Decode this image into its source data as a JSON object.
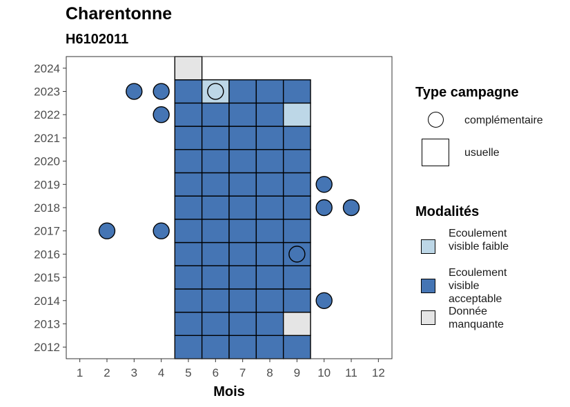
{
  "title": "Charentonne",
  "subtitle": "H6102011",
  "legend": {
    "shape_title": "Type campagne",
    "shapes": [
      {
        "label": "complémentaire",
        "shape": "circle"
      },
      {
        "label": "usuelle",
        "shape": "square"
      }
    ],
    "fill_title": "Modalités",
    "fills": [
      {
        "label": "Ecoulement visible faible",
        "color": "#BDD7E7"
      },
      {
        "label": "Ecoulement visible acceptable",
        "color": "#4575B4"
      },
      {
        "label": "Donnée manquante",
        "color": "#E5E5E5"
      }
    ]
  },
  "chart_data": {
    "type": "heatmap",
    "xlabel": "Mois",
    "ylabel": "",
    "x_ticks": [
      1,
      2,
      3,
      4,
      5,
      6,
      7,
      8,
      9,
      10,
      11,
      12
    ],
    "y_ticks": [
      2012,
      2013,
      2014,
      2015,
      2016,
      2017,
      2018,
      2019,
      2020,
      2021,
      2022,
      2023,
      2024
    ],
    "xlim": [
      0.5,
      12.5
    ],
    "ylim": [
      2011.5,
      2024.5
    ],
    "colors": {
      "Ecoulement visible faible": "#BDD7E7",
      "Ecoulement visible acceptable": "#4575B4",
      "Donnée manquante": "#E5E5E5"
    },
    "usuelle": [
      {
        "year": 2012,
        "months": [
          5,
          6,
          7,
          8,
          9
        ],
        "values": [
          "Ecoulement visible acceptable",
          "Ecoulement visible acceptable",
          "Ecoulement visible acceptable",
          "Ecoulement visible acceptable",
          "Ecoulement visible acceptable"
        ]
      },
      {
        "year": 2013,
        "months": [
          5,
          6,
          7,
          8,
          9
        ],
        "values": [
          "Ecoulement visible acceptable",
          "Ecoulement visible acceptable",
          "Ecoulement visible acceptable",
          "Ecoulement visible acceptable",
          "Donnée manquante"
        ]
      },
      {
        "year": 2014,
        "months": [
          5,
          6,
          7,
          8,
          9
        ],
        "values": [
          "Ecoulement visible acceptable",
          "Ecoulement visible acceptable",
          "Ecoulement visible acceptable",
          "Ecoulement visible acceptable",
          "Ecoulement visible acceptable"
        ]
      },
      {
        "year": 2015,
        "months": [
          5,
          6,
          7,
          8,
          9
        ],
        "values": [
          "Ecoulement visible acceptable",
          "Ecoulement visible acceptable",
          "Ecoulement visible acceptable",
          "Ecoulement visible acceptable",
          "Ecoulement visible acceptable"
        ]
      },
      {
        "year": 2016,
        "months": [
          5,
          6,
          7,
          8,
          9
        ],
        "values": [
          "Ecoulement visible acceptable",
          "Ecoulement visible acceptable",
          "Ecoulement visible acceptable",
          "Ecoulement visible acceptable",
          "Ecoulement visible acceptable"
        ]
      },
      {
        "year": 2017,
        "months": [
          5,
          6,
          7,
          8,
          9
        ],
        "values": [
          "Ecoulement visible acceptable",
          "Ecoulement visible acceptable",
          "Ecoulement visible acceptable",
          "Ecoulement visible acceptable",
          "Ecoulement visible acceptable"
        ]
      },
      {
        "year": 2018,
        "months": [
          5,
          6,
          7,
          8,
          9
        ],
        "values": [
          "Ecoulement visible acceptable",
          "Ecoulement visible acceptable",
          "Ecoulement visible acceptable",
          "Ecoulement visible acceptable",
          "Ecoulement visible acceptable"
        ]
      },
      {
        "year": 2019,
        "months": [
          5,
          6,
          7,
          8,
          9
        ],
        "values": [
          "Ecoulement visible acceptable",
          "Ecoulement visible acceptable",
          "Ecoulement visible acceptable",
          "Ecoulement visible acceptable",
          "Ecoulement visible acceptable"
        ]
      },
      {
        "year": 2020,
        "months": [
          5,
          6,
          7,
          8,
          9
        ],
        "values": [
          "Ecoulement visible acceptable",
          "Ecoulement visible acceptable",
          "Ecoulement visible acceptable",
          "Ecoulement visible acceptable",
          "Ecoulement visible acceptable"
        ]
      },
      {
        "year": 2021,
        "months": [
          5,
          6,
          7,
          8,
          9
        ],
        "values": [
          "Ecoulement visible acceptable",
          "Ecoulement visible acceptable",
          "Ecoulement visible acceptable",
          "Ecoulement visible acceptable",
          "Ecoulement visible acceptable"
        ]
      },
      {
        "year": 2022,
        "months": [
          5,
          6,
          7,
          8,
          9
        ],
        "values": [
          "Ecoulement visible acceptable",
          "Ecoulement visible acceptable",
          "Ecoulement visible acceptable",
          "Ecoulement visible acceptable",
          "Ecoulement visible faible"
        ]
      },
      {
        "year": 2023,
        "months": [
          5,
          6,
          7,
          8,
          9
        ],
        "values": [
          "Ecoulement visible acceptable",
          "Ecoulement visible faible",
          "Ecoulement visible acceptable",
          "Ecoulement visible acceptable",
          "Ecoulement visible acceptable"
        ]
      },
      {
        "year": 2024,
        "months": [
          5
        ],
        "values": [
          "Donnée manquante"
        ]
      }
    ],
    "complementaire": [
      {
        "year": 2023,
        "month": 3,
        "value": "Ecoulement visible acceptable"
      },
      {
        "year": 2023,
        "month": 4,
        "value": "Ecoulement visible acceptable"
      },
      {
        "year": 2023,
        "month": 6,
        "value": "Ecoulement visible faible"
      },
      {
        "year": 2022,
        "month": 4,
        "value": "Ecoulement visible acceptable"
      },
      {
        "year": 2019,
        "month": 10,
        "value": "Ecoulement visible acceptable"
      },
      {
        "year": 2018,
        "month": 10,
        "value": "Ecoulement visible acceptable"
      },
      {
        "year": 2018,
        "month": 11,
        "value": "Ecoulement visible acceptable"
      },
      {
        "year": 2017,
        "month": 2,
        "value": "Ecoulement visible acceptable"
      },
      {
        "year": 2017,
        "month": 4,
        "value": "Ecoulement visible acceptable"
      },
      {
        "year": 2016,
        "month": 9,
        "value": "Ecoulement visible acceptable"
      },
      {
        "year": 2014,
        "month": 10,
        "value": "Ecoulement visible acceptable"
      }
    ]
  }
}
